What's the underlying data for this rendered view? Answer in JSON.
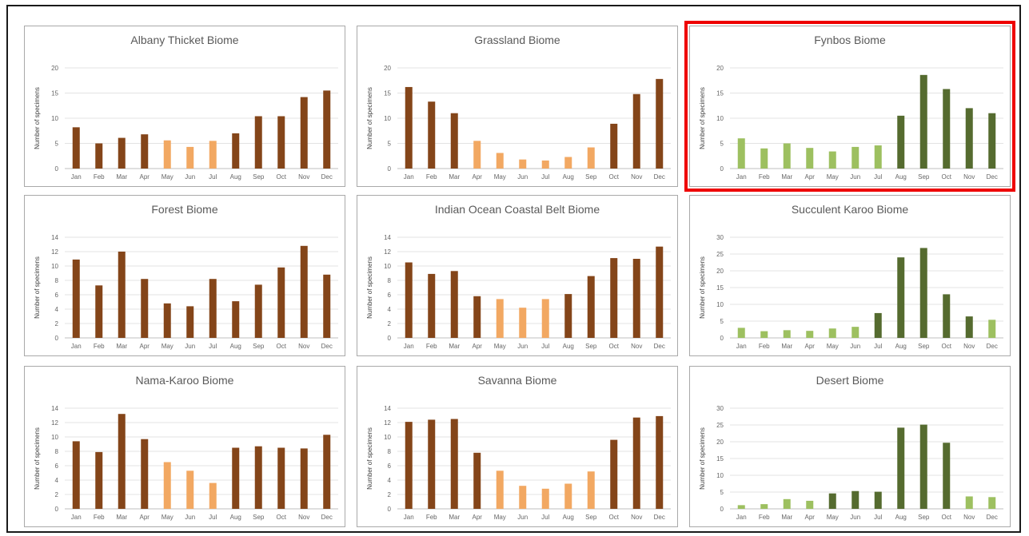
{
  "colors": {
    "brown_dark": "#844519",
    "brown_light": "#f2a862",
    "green_dark": "#556b2f",
    "green_light": "#9dc060",
    "highlight": "#ee0000"
  },
  "ylabel": "Number of specimens",
  "chart_data": [
    {
      "type": "bar",
      "title": "Albany Thicket Biome",
      "categories": [
        "Jan",
        "Feb",
        "Mar",
        "Apr",
        "May",
        "Jun",
        "Jul",
        "Aug",
        "Sep",
        "Oct",
        "Nov",
        "Dec"
      ],
      "values": [
        8.2,
        5,
        6.1,
        6.8,
        5.6,
        4.3,
        5.5,
        7,
        10.4,
        10.4,
        14.2,
        15.5
      ],
      "shade": [
        "dark",
        "dark",
        "dark",
        "dark",
        "light",
        "light",
        "light",
        "dark",
        "dark",
        "dark",
        "dark",
        "dark"
      ],
      "palette": "brown",
      "ylabel": "Number of specimens",
      "ylim": [
        0,
        20
      ],
      "yticks": [
        0,
        5,
        10,
        15,
        20
      ],
      "highlighted": false
    },
    {
      "type": "bar",
      "title": "Grassland Biome",
      "categories": [
        "Jan",
        "Feb",
        "Mar",
        "Apr",
        "May",
        "Jun",
        "Jul",
        "Aug",
        "Sep",
        "Oct",
        "Nov",
        "Dec"
      ],
      "values": [
        16.2,
        13.3,
        11,
        5.5,
        3.1,
        1.8,
        1.6,
        2.3,
        4.2,
        8.9,
        14.8,
        17.8
      ],
      "shade": [
        "dark",
        "dark",
        "dark",
        "light",
        "light",
        "light",
        "light",
        "light",
        "light",
        "dark",
        "dark",
        "dark"
      ],
      "palette": "brown",
      "ylabel": "Number of specimens",
      "ylim": [
        0,
        20
      ],
      "yticks": [
        0,
        5,
        10,
        15,
        20
      ],
      "highlighted": false
    },
    {
      "type": "bar",
      "title": "Fynbos Biome",
      "categories": [
        "Jan",
        "Feb",
        "Mar",
        "Apr",
        "May",
        "Jun",
        "Jul",
        "Aug",
        "Sep",
        "Oct",
        "Nov",
        "Dec"
      ],
      "values": [
        6,
        4,
        5,
        4.1,
        3.4,
        4.3,
        4.6,
        10.5,
        18.6,
        15.8,
        12,
        11
      ],
      "shade": [
        "light",
        "light",
        "light",
        "light",
        "light",
        "light",
        "light",
        "dark",
        "dark",
        "dark",
        "dark",
        "dark"
      ],
      "palette": "green",
      "ylabel": "Number of specimens",
      "ylim": [
        0,
        20
      ],
      "yticks": [
        0,
        5,
        10,
        15,
        20
      ],
      "highlighted": true
    },
    {
      "type": "bar",
      "title": "Forest Biome",
      "categories": [
        "Jan",
        "Feb",
        "Mar",
        "Apr",
        "May",
        "Jun",
        "Jul",
        "Aug",
        "Sep",
        "Oct",
        "Nov",
        "Dec"
      ],
      "values": [
        10.9,
        7.3,
        12,
        8.2,
        4.8,
        4.4,
        8.2,
        5.1,
        7.4,
        9.8,
        12.8,
        8.8
      ],
      "shade": [
        "dark",
        "dark",
        "dark",
        "dark",
        "dark",
        "dark",
        "dark",
        "dark",
        "dark",
        "dark",
        "dark",
        "dark"
      ],
      "palette": "brown",
      "ylabel": "Number of specimens",
      "ylim": [
        0,
        14
      ],
      "yticks": [
        0,
        2,
        4,
        6,
        8,
        10,
        12,
        14
      ],
      "highlighted": false
    },
    {
      "type": "bar",
      "title": "Indian Ocean Coastal Belt Biome",
      "categories": [
        "Jan",
        "Feb",
        "Mar",
        "Apr",
        "May",
        "Jun",
        "Jul",
        "Aug",
        "Sep",
        "Oct",
        "Nov",
        "Dec"
      ],
      "values": [
        10.5,
        8.9,
        9.3,
        5.8,
        5.4,
        4.2,
        5.4,
        6.1,
        8.6,
        11.1,
        11,
        12.7
      ],
      "shade": [
        "dark",
        "dark",
        "dark",
        "dark",
        "light",
        "light",
        "light",
        "dark",
        "dark",
        "dark",
        "dark",
        "dark"
      ],
      "palette": "brown",
      "ylabel": "Number of specimens",
      "ylim": [
        0,
        14
      ],
      "yticks": [
        0,
        2,
        4,
        6,
        8,
        10,
        12,
        14
      ],
      "highlighted": false
    },
    {
      "type": "bar",
      "title": "Succulent Karoo Biome",
      "categories": [
        "Jan",
        "Feb",
        "Mar",
        "Apr",
        "May",
        "Jun",
        "Jul",
        "Aug",
        "Sep",
        "Oct",
        "Nov",
        "Dec"
      ],
      "values": [
        3,
        2,
        2.3,
        2.1,
        2.8,
        3.3,
        7.4,
        24,
        26.8,
        13,
        6.4,
        5.4
      ],
      "shade": [
        "light",
        "light",
        "light",
        "light",
        "light",
        "light",
        "dark",
        "dark",
        "dark",
        "dark",
        "dark",
        "light"
      ],
      "palette": "green",
      "ylabel": "Number of specimens",
      "ylim": [
        0,
        30
      ],
      "yticks": [
        0,
        5,
        10,
        15,
        20,
        25,
        30
      ],
      "highlighted": false
    },
    {
      "type": "bar",
      "title": "Nama-Karoo Biome",
      "categories": [
        "Jan",
        "Feb",
        "Mar",
        "Apr",
        "May",
        "Jun",
        "Jul",
        "Aug",
        "Sep",
        "Oct",
        "Nov",
        "Dec"
      ],
      "values": [
        9.4,
        7.9,
        13.2,
        9.7,
        6.5,
        5.3,
        3.6,
        8.5,
        8.7,
        8.5,
        8.4,
        10.3
      ],
      "shade": [
        "dark",
        "dark",
        "dark",
        "dark",
        "light",
        "light",
        "light",
        "dark",
        "dark",
        "dark",
        "dark",
        "dark"
      ],
      "palette": "brown",
      "ylabel": "Number of specimens",
      "ylim": [
        0,
        14
      ],
      "yticks": [
        0,
        2,
        4,
        6,
        8,
        10,
        12,
        14
      ],
      "highlighted": false
    },
    {
      "type": "bar",
      "title": "Savanna Biome",
      "categories": [
        "Jan",
        "Feb",
        "Mar",
        "Apr",
        "May",
        "Jun",
        "Jul",
        "Aug",
        "Sep",
        "Oct",
        "Nov",
        "Dec"
      ],
      "values": [
        12.1,
        12.4,
        12.5,
        7.8,
        5.3,
        3.2,
        2.8,
        3.5,
        5.2,
        9.6,
        12.7,
        12.9
      ],
      "shade": [
        "dark",
        "dark",
        "dark",
        "dark",
        "light",
        "light",
        "light",
        "light",
        "light",
        "dark",
        "dark",
        "dark"
      ],
      "palette": "brown",
      "ylabel": "Number of specimens",
      "ylim": [
        0,
        14
      ],
      "yticks": [
        0,
        2,
        4,
        6,
        8,
        10,
        12,
        14
      ],
      "highlighted": false
    },
    {
      "type": "bar",
      "title": "Desert Biome",
      "categories": [
        "Jan",
        "Feb",
        "Mar",
        "Apr",
        "May",
        "Jun",
        "Jul",
        "Aug",
        "Sep",
        "Oct",
        "Nov",
        "Dec"
      ],
      "values": [
        1.1,
        1.4,
        2.9,
        2.4,
        4.6,
        5.3,
        5.1,
        24.2,
        25.1,
        19.7,
        3.7,
        3.5
      ],
      "shade": [
        "light",
        "light",
        "light",
        "light",
        "dark",
        "dark",
        "dark",
        "dark",
        "dark",
        "dark",
        "light",
        "light"
      ],
      "palette": "green",
      "ylabel": "Number of specimens",
      "ylim": [
        0,
        30
      ],
      "yticks": [
        0,
        5,
        10,
        15,
        20,
        25,
        30
      ],
      "highlighted": false
    }
  ]
}
